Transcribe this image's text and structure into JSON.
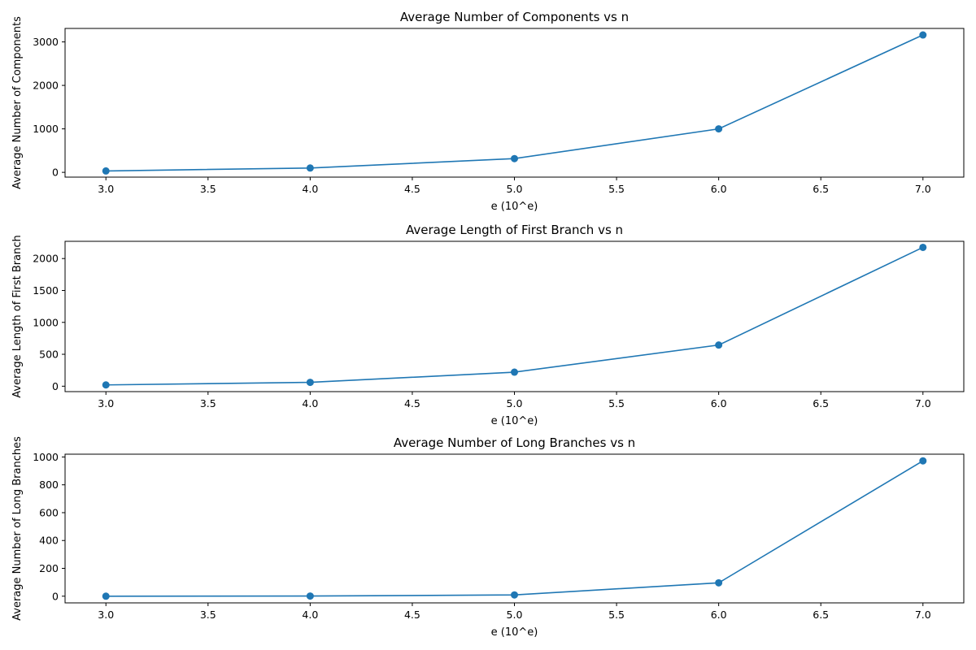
{
  "chart_data": [
    {
      "type": "line",
      "title": "Average Number of Components vs n",
      "xlabel": "e (10^e)",
      "ylabel": "Average Number of Components",
      "x": [
        3.0,
        4.0,
        5.0,
        6.0,
        7.0
      ],
      "series": [
        {
          "values": [
            32,
            100,
            316,
            1000,
            3160
          ],
          "color": "#1f77b4",
          "marker": "circle"
        }
      ],
      "xlim": [
        2.8,
        7.2
      ],
      "ylim": [
        -110,
        3310
      ],
      "xticks": [
        "3.0",
        "3.5",
        "4.0",
        "4.5",
        "5.0",
        "5.5",
        "6.0",
        "6.5",
        "7.0"
      ],
      "yticks": [
        "0",
        "1000",
        "2000",
        "3000"
      ],
      "grid": false
    },
    {
      "type": "line",
      "title": "Average Length of First Branch vs n",
      "xlabel": "e (10^e)",
      "ylabel": "Average Length of First Branch",
      "x": [
        3.0,
        4.0,
        5.0,
        6.0,
        7.0
      ],
      "series": [
        {
          "values": [
            20,
            60,
            220,
            645,
            2175
          ],
          "color": "#1f77b4",
          "marker": "circle"
        }
      ],
      "xlim": [
        2.8,
        7.2
      ],
      "ylim": [
        -85,
        2270
      ],
      "xticks": [
        "3.0",
        "3.5",
        "4.0",
        "4.5",
        "5.0",
        "5.5",
        "6.0",
        "6.5",
        "7.0"
      ],
      "yticks": [
        "0",
        "500",
        "1000",
        "1500",
        "2000"
      ],
      "grid": false
    },
    {
      "type": "line",
      "title": "Average Number of Long Branches vs n",
      "xlabel": "e (10^e)",
      "ylabel": "Average Number of Long Branches",
      "x": [
        3.0,
        4.0,
        5.0,
        6.0,
        7.0
      ],
      "series": [
        {
          "values": [
            0,
            1,
            9,
            96,
            972
          ],
          "color": "#1f77b4",
          "marker": "circle"
        }
      ],
      "xlim": [
        2.8,
        7.2
      ],
      "ylim": [
        -48,
        1020
      ],
      "xticks": [
        "3.0",
        "3.5",
        "4.0",
        "4.5",
        "5.0",
        "5.5",
        "6.0",
        "6.5",
        "7.0"
      ],
      "yticks": [
        "0",
        "200",
        "400",
        "600",
        "800",
        "1000"
      ],
      "grid": false
    }
  ]
}
